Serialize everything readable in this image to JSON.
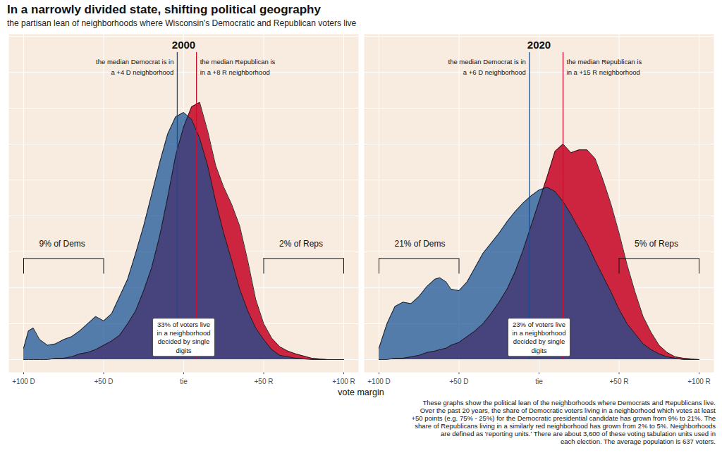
{
  "chart_data": {
    "type": "area",
    "title": "In a narrowly divided state, shifting political geography",
    "subtitle": "the partisan lean of neighborhoods where Wisconsin's Democratic and Republican voters live",
    "xlabel": "vote margin",
    "caption": [
      "These graphs show the political lean of the neighborhoods where Democrats and Republicans live.",
      "Over the past 20 years, the share of Democratic voters living in a neighborhood which votes at least",
      "+50 points (e.g. 75% - 25%) for the Democratic presidential candidate has grown from 9% to 21%. The",
      "share of Republicans living in a similarly red neighborhood has grown from 2% to 5%. Neighborhoods",
      "are defined as 'reporting units.' There are about 3,600 of these voting tabulation units used in",
      "each election. The average population is 637 voters."
    ],
    "xlim": [
      -100,
      100
    ],
    "xticks": [
      {
        "value": -100,
        "label": "+100 D"
      },
      {
        "value": -50,
        "label": "+50 D"
      },
      {
        "value": 0,
        "label": "tie"
      },
      {
        "value": 50,
        "label": "+50 R"
      },
      {
        "value": 100,
        "label": "+100 R"
      }
    ],
    "ylim": [
      0,
      2.25
    ],
    "yticks": [
      0,
      0.25,
      0.5,
      0.75,
      1,
      1.25,
      1.5,
      1.75,
      2,
      2.25
    ],
    "grid": true,
    "tick_labels": "x",
    "panels": [
      {
        "title": "2000",
        "x": [
          -100,
          -97,
          -94,
          -90,
          -85,
          -80,
          -75,
          -70,
          -65,
          -60,
          -55,
          -50,
          -45,
          -40,
          -35,
          -30,
          -25,
          -20,
          -15,
          -10,
          -5,
          0,
          5,
          10,
          15,
          20,
          25,
          30,
          35,
          40,
          45,
          50,
          55,
          60,
          65,
          70,
          80,
          90,
          100
        ],
        "series": [
          {
            "name": "Dems",
            "color": "#145096",
            "values": [
              0.08,
              0.2,
              0.22,
              0.14,
              0.1,
              0.11,
              0.14,
              0.16,
              0.2,
              0.25,
              0.3,
              0.27,
              0.32,
              0.44,
              0.56,
              0.74,
              0.93,
              1.15,
              1.37,
              1.57,
              1.69,
              1.72,
              1.67,
              1.54,
              1.35,
              1.1,
              0.88,
              0.69,
              0.49,
              0.34,
              0.22,
              0.14,
              0.07,
              0.03,
              0.02,
              0.01,
              0,
              0,
              0
            ]
          },
          {
            "name": "Reps",
            "color": "#c8102e",
            "values": [
              0,
              0,
              0,
              0,
              0,
              0.01,
              0.01,
              0.02,
              0.04,
              0.05,
              0.07,
              0.1,
              0.13,
              0.17,
              0.25,
              0.34,
              0.48,
              0.64,
              0.86,
              1.13,
              1.42,
              1.62,
              1.76,
              1.79,
              1.59,
              1.35,
              1.2,
              1.08,
              0.93,
              0.69,
              0.42,
              0.25,
              0.15,
              0.09,
              0.06,
              0.04,
              0.01,
              0,
              0
            ]
          }
        ],
        "medians": [
          {
            "series": "Dems",
            "value": -4,
            "label": "the median Democrat is in\na +4 D neighborhood"
          },
          {
            "series": "Reps",
            "value": 8,
            "label": "the median Republican is\nin a +8 R neighborhood"
          }
        ],
        "brackets": [
          {
            "label": "9% of Dems",
            "from": -100,
            "to": -50
          },
          {
            "label": "2% of Reps",
            "from": 50,
            "to": 100
          }
        ],
        "notes": [
          {
            "x": 0,
            "text": "33% of voters live\nin a neighborhood\ndecided by single\ndigits"
          }
        ]
      },
      {
        "title": "2020",
        "x": [
          -100,
          -95,
          -90,
          -85,
          -80,
          -75,
          -70,
          -65,
          -62,
          -58,
          -55,
          -50,
          -45,
          -40,
          -35,
          -30,
          -25,
          -20,
          -15,
          -10,
          -5,
          0,
          5,
          10,
          15,
          20,
          25,
          30,
          35,
          40,
          45,
          50,
          55,
          60,
          65,
          70,
          75,
          80,
          85,
          90,
          100
        ],
        "series": [
          {
            "name": "Dems",
            "color": "#145096",
            "values": [
              0.08,
              0.25,
              0.37,
              0.4,
              0.39,
              0.44,
              0.51,
              0.56,
              0.57,
              0.54,
              0.49,
              0.48,
              0.54,
              0.64,
              0.74,
              0.81,
              0.88,
              0.96,
              1.03,
              1.09,
              1.14,
              1.18,
              1.2,
              1.17,
              1.1,
              1.01,
              0.91,
              0.81,
              0.69,
              0.58,
              0.47,
              0.35,
              0.25,
              0.18,
              0.11,
              0.07,
              0.04,
              0.02,
              0.01,
              0,
              0
            ]
          },
          {
            "name": "Reps",
            "color": "#c8102e",
            "values": [
              0,
              0,
              0.01,
              0.01,
              0.02,
              0.03,
              0.05,
              0.06,
              0.07,
              0.08,
              0.1,
              0.12,
              0.16,
              0.2,
              0.25,
              0.32,
              0.4,
              0.49,
              0.61,
              0.76,
              0.93,
              1.1,
              1.27,
              1.45,
              1.5,
              1.44,
              1.46,
              1.46,
              1.4,
              1.25,
              1.08,
              0.88,
              0.66,
              0.47,
              0.3,
              0.19,
              0.1,
              0.05,
              0.02,
              0.01,
              0
            ]
          }
        ],
        "medians": [
          {
            "series": "Dems",
            "value": -6,
            "label": "the median Democrat is in\na +6 D neighborhood"
          },
          {
            "series": "Reps",
            "value": 15,
            "label": "the median Republican is\nin a +15 R neighborhood"
          }
        ],
        "brackets": [
          {
            "label": "21% of Dems",
            "from": -100,
            "to": -50
          },
          {
            "label": "5% of Reps",
            "from": 50,
            "to": 100
          }
        ],
        "notes": [
          {
            "x": 0,
            "text": "23% of voters live\nin a neighborhood\ndecided by single\ndigits"
          }
        ]
      }
    ]
  }
}
